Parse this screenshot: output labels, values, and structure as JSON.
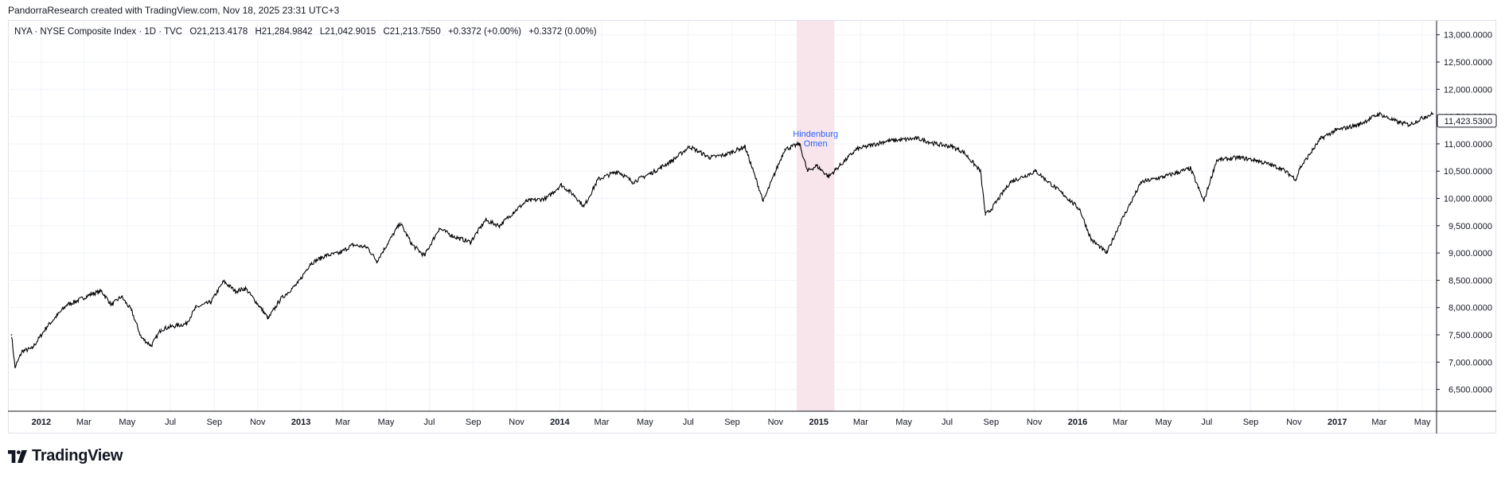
{
  "header": {
    "credit": "PandorraResearch created with TradingView.com, Nov 18, 2025 23:31 UTC+3"
  },
  "legend": {
    "symbol": "NYA · NYSE Composite Index · 1D · TVC",
    "open": "O21,213.4178",
    "high": "H21,284.9842",
    "low": "L21,042.9015",
    "close": "C21,213.7550",
    "change": "+0.3372 (+0.00%)",
    "change2": "+0.3372 (0.00%)"
  },
  "brand": {
    "name": "TradingView"
  },
  "colors": {
    "price": "#000000",
    "grid": "#f0f3fa",
    "highlight": "#f8e5eb",
    "annotation": "#2962ff",
    "last_price_box": "#131722"
  },
  "chart_data": {
    "type": "line",
    "title": "",
    "xlabel": "",
    "ylabel": "",
    "x_ticks": [
      "2012",
      "Mar",
      "May",
      "Jul",
      "Sep",
      "Nov",
      "2013",
      "Mar",
      "May",
      "Jul",
      "Sep",
      "Nov",
      "2014",
      "Mar",
      "May",
      "Jul",
      "Sep",
      "Nov",
      "2015",
      "Mar",
      "May",
      "Jul",
      "Sep",
      "Nov",
      "2016",
      "Mar",
      "May",
      "Jul",
      "Sep",
      "Nov",
      "2017",
      "Mar",
      "May"
    ],
    "y_ticks": [
      "13,000.0000",
      "12,500.0000",
      "12,000.0000",
      "11,500.0000",
      "11,000.0000",
      "10,500.0000",
      "10,000.0000",
      "9,500.0000",
      "9,000.0000",
      "8,500.0000",
      "8,000.0000",
      "7,500.0000",
      "7,000.0000",
      "6,500.0000"
    ],
    "ylim": [
      6100,
      13200
    ],
    "last_price_label": "11,423.5300",
    "grid": true,
    "series": [
      {
        "x": [
          "2011-11-20",
          "2011-11-25",
          "2011-12-05",
          "2011-12-19",
          "2012-01-09",
          "2012-01-23",
          "2012-02-06",
          "2012-02-20",
          "2012-03-12",
          "2012-03-26",
          "2012-04-09",
          "2012-04-23",
          "2012-05-07",
          "2012-05-21",
          "2012-06-04",
          "2012-06-18",
          "2012-07-02",
          "2012-07-23",
          "2012-08-06",
          "2012-08-27",
          "2012-09-14",
          "2012-10-01",
          "2012-10-15",
          "2012-11-05",
          "2012-11-16",
          "2012-12-03",
          "2012-12-28",
          "2013-01-14",
          "2013-02-04",
          "2013-02-25",
          "2013-03-15",
          "2013-04-05",
          "2013-04-18",
          "2013-05-21",
          "2013-06-07",
          "2013-06-24",
          "2013-07-15",
          "2013-08-05",
          "2013-08-28",
          "2013-09-18",
          "2013-10-08",
          "2013-10-28",
          "2013-11-15",
          "2013-12-13",
          "2014-01-03",
          "2014-01-22",
          "2014-02-04",
          "2014-02-24",
          "2014-03-24",
          "2014-04-14",
          "2014-05-15",
          "2014-06-09",
          "2014-07-03",
          "2014-07-31",
          "2014-08-22",
          "2014-09-19",
          "2014-10-15",
          "2014-11-14",
          "2014-12-05",
          "2014-12-16",
          "2014-12-29",
          "2015-01-15",
          "2015-02-23",
          "2015-04-06",
          "2015-05-20",
          "2015-06-15",
          "2015-07-08",
          "2015-07-24",
          "2015-08-17",
          "2015-08-24",
          "2015-09-01",
          "2015-09-28",
          "2015-11-03",
          "2015-12-14",
          "2016-01-04",
          "2016-01-20",
          "2016-02-11",
          "2016-03-01",
          "2016-03-31",
          "2016-05-02",
          "2016-06-08",
          "2016-06-27",
          "2016-07-15",
          "2016-08-15",
          "2016-09-09",
          "2016-10-14",
          "2016-11-04",
          "2016-11-09",
          "2016-12-09",
          "2016-12-30",
          "2017-01-31",
          "2017-03-01",
          "2017-03-27",
          "2017-04-13",
          "2017-05-05",
          "2017-05-16"
        ],
        "values": [
          7500,
          6900,
          7200,
          7250,
          7650,
          7850,
          8050,
          8120,
          8250,
          8300,
          8050,
          8200,
          7950,
          7450,
          7300,
          7600,
          7650,
          7700,
          8000,
          8100,
          8480,
          8300,
          8350,
          8000,
          7800,
          8150,
          8450,
          8800,
          8950,
          9000,
          9150,
          9100,
          8850,
          9550,
          9150,
          8950,
          9450,
          9300,
          9200,
          9600,
          9500,
          9750,
          9950,
          10000,
          10250,
          10050,
          9850,
          10350,
          10500,
          10300,
          10500,
          10700,
          10950,
          10750,
          10800,
          10950,
          9950,
          10900,
          11000,
          10500,
          10600,
          10400,
          10900,
          11050,
          11100,
          11000,
          10950,
          10850,
          10500,
          9700,
          9800,
          10300,
          10500,
          10050,
          9800,
          9250,
          9000,
          9550,
          10300,
          10400,
          10550,
          9950,
          10700,
          10750,
          10700,
          10550,
          10350,
          10550,
          11100,
          11250,
          11350,
          11550,
          11400,
          11350,
          11500,
          11550
        ]
      }
    ],
    "annotations": [
      {
        "text": "Hindenburg Omen",
        "start": "2014-12-01",
        "end": "2015-01-23"
      }
    ]
  }
}
